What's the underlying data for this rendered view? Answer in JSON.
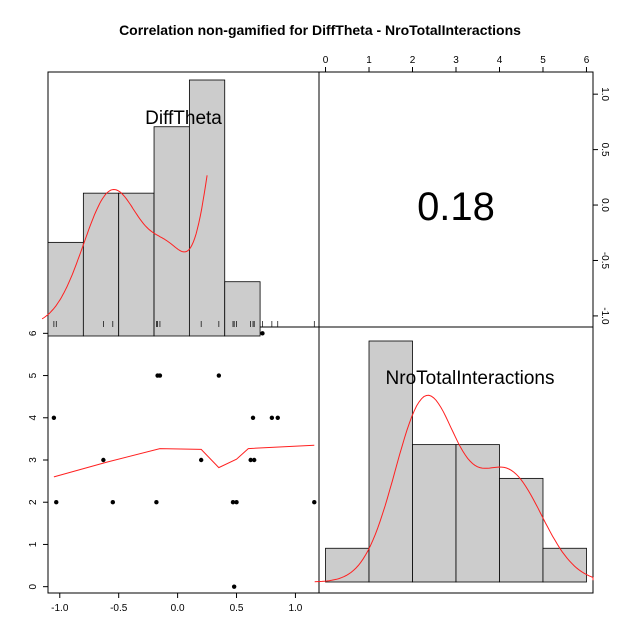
{
  "chart_data": {
    "type": "scatter",
    "title": "Correlation non-gamified for DiffTheta - NroTotalInteractions",
    "variables": [
      "DiffTheta",
      "NroTotalInteractions"
    ],
    "correlation_label": "0.18",
    "x_range": [
      -1.1,
      1.2
    ],
    "y_range": [
      -0.15,
      6.15
    ],
    "x_ticks": [
      -1.0,
      -0.5,
      0.0,
      0.5,
      1.0
    ],
    "x_tick_labels": [
      "-1.0",
      "-0.5",
      "0.0",
      "0.5",
      "1.0"
    ],
    "y_ticks": [
      0,
      1,
      2,
      3,
      4,
      5,
      6
    ],
    "y_tick_labels": [
      "0",
      "1",
      "2",
      "3",
      "4",
      "5",
      "6"
    ],
    "top_ticks": [
      0,
      1,
      2,
      3,
      4,
      5,
      6
    ],
    "top_tick_labels": [
      "0",
      "1",
      "2",
      "3",
      "4",
      "5",
      "6"
    ],
    "right_ticks": [
      1.0,
      0.5,
      0.0,
      -0.5,
      -1.0
    ],
    "right_tick_labels": [
      "1.0",
      "0.5",
      "0.0",
      "-0.5",
      "-1.0"
    ],
    "points": [
      {
        "x": -1.05,
        "y": 4
      },
      {
        "x": -1.03,
        "y": 2
      },
      {
        "x": -0.63,
        "y": 3
      },
      {
        "x": -0.55,
        "y": 2
      },
      {
        "x": -0.18,
        "y": 2
      },
      {
        "x": -0.17,
        "y": 5
      },
      {
        "x": -0.15,
        "y": 5
      },
      {
        "x": 0.2,
        "y": 3
      },
      {
        "x": 0.35,
        "y": 5
      },
      {
        "x": 0.47,
        "y": 2
      },
      {
        "x": 0.48,
        "y": 0
      },
      {
        "x": 0.5,
        "y": 2
      },
      {
        "x": 0.62,
        "y": 3
      },
      {
        "x": 0.64,
        "y": 4
      },
      {
        "x": 0.65,
        "y": 3
      },
      {
        "x": 0.72,
        "y": 6
      },
      {
        "x": 0.8,
        "y": 4
      },
      {
        "x": 0.85,
        "y": 4
      },
      {
        "x": 1.16,
        "y": 2
      }
    ],
    "smooth_line": [
      {
        "x": -1.05,
        "y": 2.6
      },
      {
        "x": -0.6,
        "y": 2.95
      },
      {
        "x": -0.15,
        "y": 3.27
      },
      {
        "x": 0.2,
        "y": 3.25
      },
      {
        "x": 0.35,
        "y": 2.82
      },
      {
        "x": 0.5,
        "y": 3.02
      },
      {
        "x": 0.6,
        "y": 3.27
      },
      {
        "x": 1.16,
        "y": 3.35
      }
    ],
    "hist_difftheta": {
      "breaks": [
        -1.1,
        -0.8,
        -0.5,
        -0.2,
        0.1,
        0.4,
        0.7
      ],
      "heights": [
        0.34,
        0.54,
        0.54,
        0.81,
        1.0,
        0.18
      ]
    },
    "hist_nrototal": {
      "breaks": [
        0,
        1,
        2,
        3,
        4,
        5,
        6
      ],
      "heights": [
        0.14,
        1.0,
        0.57,
        0.57,
        0.43,
        0.14
      ]
    }
  }
}
